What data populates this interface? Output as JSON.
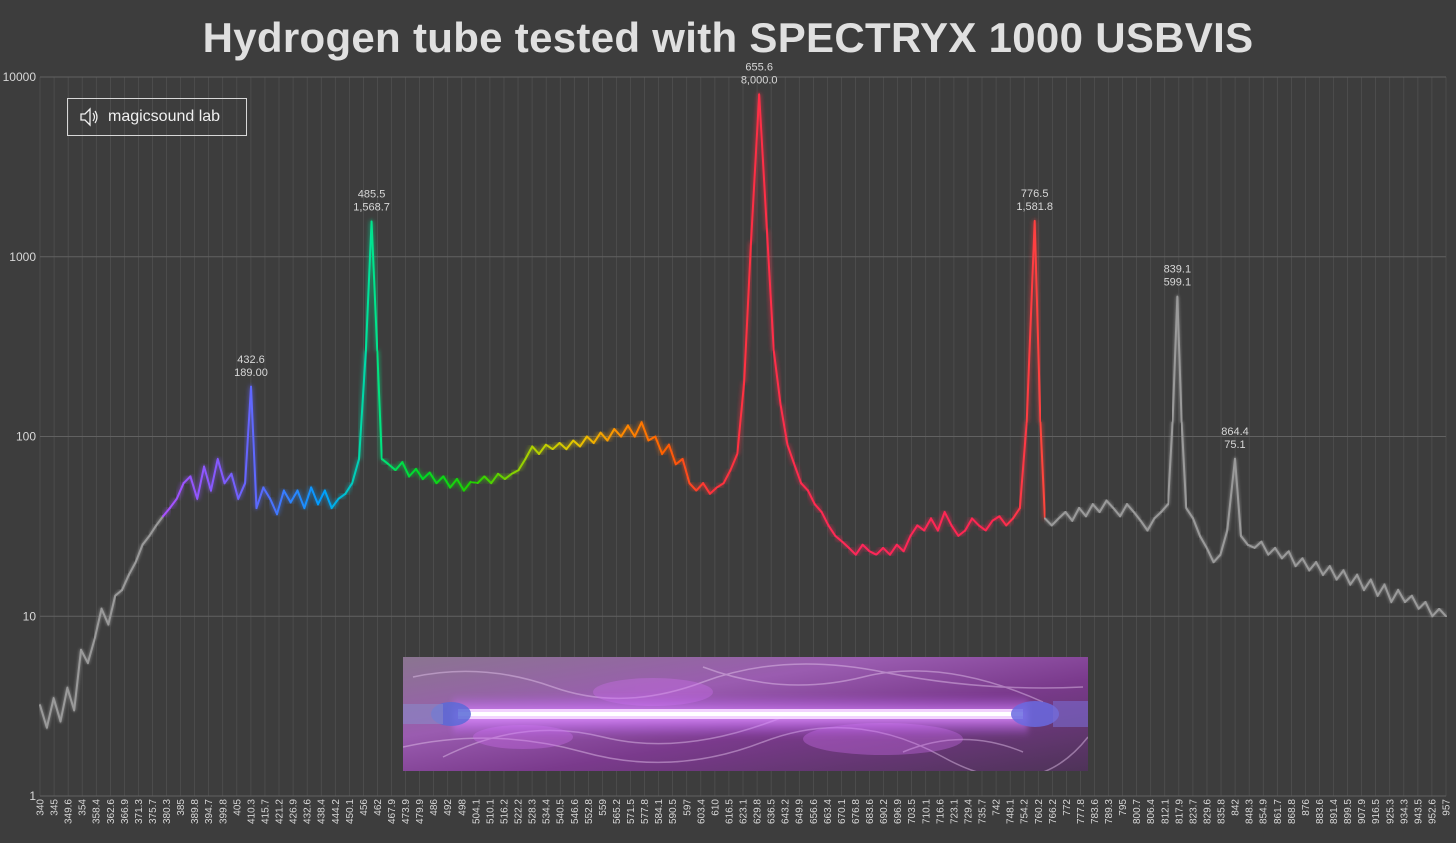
{
  "chart_data": {
    "type": "line",
    "title": "Hydrogen tube tested with SPECTRYX 1000 USBVIS",
    "xlabel": "",
    "ylabel": "",
    "yscale": "log",
    "ylim": [
      1,
      10000
    ],
    "xlim": [
      340,
      957
    ],
    "y_ticks": [
      "1",
      "10",
      "100",
      "1000",
      "10000"
    ],
    "x_ticks": [
      "340",
      "345",
      "349.6",
      "354",
      "358.4",
      "362.6",
      "366.9",
      "371.3",
      "375.7",
      "380.3",
      "385",
      "389.8",
      "394.7",
      "399.8",
      "405",
      "410.3",
      "415.7",
      "421.2",
      "426.9",
      "432.6",
      "438.4",
      "444.2",
      "450.1",
      "456",
      "462",
      "467.9",
      "473.9",
      "479.9",
      "486",
      "492",
      "498",
      "504.1",
      "510.1",
      "516.2",
      "522.2",
      "528.3",
      "534.4",
      "540.5",
      "546.6",
      "552.8",
      "559",
      "565.2",
      "571.5",
      "577.8",
      "584.1",
      "590.5",
      "597",
      "603.4",
      "610",
      "616.5",
      "623.1",
      "629.8",
      "636.5",
      "643.2",
      "649.9",
      "656.6",
      "663.4",
      "670.1",
      "676.8",
      "683.6",
      "690.2",
      "696.9",
      "703.5",
      "710.1",
      "716.6",
      "723.1",
      "729.4",
      "735.7",
      "742",
      "748.1",
      "754.2",
      "760.2",
      "766.2",
      "772",
      "777.8",
      "783.6",
      "789.3",
      "795",
      "800.7",
      "806.4",
      "812.1",
      "817.9",
      "823.7",
      "829.6",
      "835.8",
      "842",
      "848.3",
      "854.9",
      "861.7",
      "868.8",
      "876",
      "883.6",
      "891.4",
      "899.5",
      "907.9",
      "916.5",
      "925.3",
      "934.3",
      "943.5",
      "952.6",
      "957"
    ],
    "grid": true,
    "legend": "none",
    "series": [
      {
        "name": "",
        "points": [
          [
            340,
            3.2
          ],
          [
            343,
            2.4
          ],
          [
            346,
            3.5
          ],
          [
            349,
            2.6
          ],
          [
            352,
            4.0
          ],
          [
            355,
            3.0
          ],
          [
            358,
            6.5
          ],
          [
            361,
            5.5
          ],
          [
            364,
            7.5
          ],
          [
            367,
            11
          ],
          [
            370,
            9
          ],
          [
            373,
            13
          ],
          [
            376,
            14
          ],
          [
            379,
            17
          ],
          [
            382,
            20
          ],
          [
            385,
            25
          ],
          [
            388,
            28
          ],
          [
            391,
            32
          ],
          [
            394,
            36
          ],
          [
            397,
            40
          ],
          [
            400,
            45
          ],
          [
            403,
            55
          ],
          [
            406,
            60
          ],
          [
            409,
            45
          ],
          [
            412,
            68
          ],
          [
            415,
            50
          ],
          [
            418,
            75
          ],
          [
            421,
            55
          ],
          [
            424,
            62
          ],
          [
            427,
            45
          ],
          [
            430,
            55
          ],
          [
            432.6,
            189
          ],
          [
            435,
            40
          ],
          [
            438,
            52
          ],
          [
            441,
            45
          ],
          [
            444,
            37
          ],
          [
            447,
            50
          ],
          [
            450,
            43
          ],
          [
            453,
            50
          ],
          [
            456,
            40
          ],
          [
            459,
            52
          ],
          [
            462,
            42
          ],
          [
            465,
            50
          ],
          [
            468,
            40
          ],
          [
            471,
            45
          ],
          [
            474,
            48
          ],
          [
            477,
            55
          ],
          [
            480,
            75
          ],
          [
            483,
            300
          ],
          [
            485.5,
            1568.7
          ],
          [
            488,
            300
          ],
          [
            490,
            75
          ],
          [
            493,
            70
          ],
          [
            496,
            65
          ],
          [
            499,
            72
          ],
          [
            502,
            60
          ],
          [
            505,
            66
          ],
          [
            508,
            58
          ],
          [
            511,
            63
          ],
          [
            514,
            55
          ],
          [
            517,
            60
          ],
          [
            520,
            52
          ],
          [
            523,
            58
          ],
          [
            526,
            50
          ],
          [
            529,
            56
          ],
          [
            532,
            55
          ],
          [
            535,
            60
          ],
          [
            538,
            55
          ],
          [
            541,
            62
          ],
          [
            544,
            58
          ],
          [
            547,
            62
          ],
          [
            550,
            65
          ],
          [
            553,
            75
          ],
          [
            556,
            88
          ],
          [
            559,
            80
          ],
          [
            562,
            90
          ],
          [
            565,
            85
          ],
          [
            568,
            92
          ],
          [
            571,
            85
          ],
          [
            574,
            95
          ],
          [
            577,
            88
          ],
          [
            580,
            100
          ],
          [
            583,
            92
          ],
          [
            586,
            105
          ],
          [
            589,
            95
          ],
          [
            592,
            110
          ],
          [
            595,
            100
          ],
          [
            598,
            115
          ],
          [
            601,
            100
          ],
          [
            604,
            120
          ],
          [
            607,
            95
          ],
          [
            610,
            100
          ],
          [
            613,
            80
          ],
          [
            616,
            90
          ],
          [
            619,
            70
          ],
          [
            622,
            75
          ],
          [
            625,
            55
          ],
          [
            628,
            50
          ],
          [
            631,
            55
          ],
          [
            634,
            48
          ],
          [
            637,
            52
          ],
          [
            640,
            55
          ],
          [
            643,
            65
          ],
          [
            646,
            80
          ],
          [
            649,
            200
          ],
          [
            652,
            1200
          ],
          [
            655.6,
            8000
          ],
          [
            659,
            1400
          ],
          [
            662,
            300
          ],
          [
            665,
            150
          ],
          [
            668,
            90
          ],
          [
            671,
            70
          ],
          [
            674,
            55
          ],
          [
            677,
            50
          ],
          [
            680,
            42
          ],
          [
            683,
            38
          ],
          [
            686,
            32
          ],
          [
            689,
            28
          ],
          [
            692,
            26
          ],
          [
            695,
            24
          ],
          [
            698,
            22
          ],
          [
            701,
            25
          ],
          [
            704,
            23
          ],
          [
            707,
            22
          ],
          [
            710,
            24
          ],
          [
            713,
            22
          ],
          [
            716,
            25
          ],
          [
            719,
            23
          ],
          [
            722,
            28
          ],
          [
            725,
            32
          ],
          [
            728,
            30
          ],
          [
            731,
            35
          ],
          [
            734,
            30
          ],
          [
            737,
            38
          ],
          [
            740,
            32
          ],
          [
            743,
            28
          ],
          [
            746,
            30
          ],
          [
            749,
            35
          ],
          [
            752,
            32
          ],
          [
            755,
            30
          ],
          [
            758,
            34
          ],
          [
            761,
            36
          ],
          [
            764,
            32
          ],
          [
            767,
            35
          ],
          [
            770,
            40
          ],
          [
            773,
            120
          ],
          [
            776.5,
            1581.8
          ],
          [
            779,
            120
          ],
          [
            781,
            35
          ],
          [
            784,
            32
          ],
          [
            787,
            35
          ],
          [
            790,
            38
          ],
          [
            793,
            34
          ],
          [
            796,
            40
          ],
          [
            799,
            36
          ],
          [
            802,
            42
          ],
          [
            805,
            38
          ],
          [
            808,
            44
          ],
          [
            811,
            40
          ],
          [
            814,
            36
          ],
          [
            817,
            42
          ],
          [
            820,
            38
          ],
          [
            823,
            34
          ],
          [
            826,
            30
          ],
          [
            829,
            35
          ],
          [
            832,
            38
          ],
          [
            835,
            42
          ],
          [
            837,
            120
          ],
          [
            839.1,
            599.1
          ],
          [
            841,
            120
          ],
          [
            843,
            40
          ],
          [
            846,
            35
          ],
          [
            849,
            28
          ],
          [
            852,
            24
          ],
          [
            855,
            20
          ],
          [
            858,
            22
          ],
          [
            861,
            30
          ],
          [
            864.4,
            75.1
          ],
          [
            867,
            28
          ],
          [
            870,
            25
          ],
          [
            873,
            24
          ],
          [
            876,
            26
          ],
          [
            879,
            22
          ],
          [
            882,
            24
          ],
          [
            885,
            21
          ],
          [
            888,
            23
          ],
          [
            891,
            19
          ],
          [
            894,
            21
          ],
          [
            897,
            18
          ],
          [
            900,
            20
          ],
          [
            903,
            17
          ],
          [
            906,
            19
          ],
          [
            909,
            16
          ],
          [
            912,
            18
          ],
          [
            915,
            15
          ],
          [
            918,
            17
          ],
          [
            921,
            14
          ],
          [
            924,
            16
          ],
          [
            927,
            13
          ],
          [
            930,
            15
          ],
          [
            933,
            12
          ],
          [
            936,
            14
          ],
          [
            939,
            12
          ],
          [
            942,
            13
          ],
          [
            945,
            11
          ],
          [
            948,
            12
          ],
          [
            951,
            10
          ],
          [
            954,
            11
          ],
          [
            957,
            10
          ]
        ]
      }
    ],
    "annotations": [
      {
        "x": 432.6,
        "y": 189,
        "wavelength": "432.6",
        "value": "189.00"
      },
      {
        "x": 485.5,
        "y": 1568.7,
        "wavelength": "485.5",
        "value": "1,568.7"
      },
      {
        "x": 655.6,
        "y": 8000,
        "wavelength": "655.6",
        "value": "8,000.0"
      },
      {
        "x": 776.5,
        "y": 1581.8,
        "wavelength": "776.5",
        "value": "1,581.8"
      },
      {
        "x": 839.1,
        "y": 599.1,
        "wavelength": "839.1",
        "value": "599.1"
      },
      {
        "x": 864.4,
        "y": 75.1,
        "wavelength": "864.4",
        "value": "75.1"
      }
    ],
    "colors": {
      "background": "#3d3d3d",
      "grid": "#565656",
      "title": "#e0e0e0",
      "label": "#d8d8d8",
      "uv_ir_line": "#9a9a9a"
    }
  },
  "watermark": {
    "label": "magicsound lab",
    "icon": "speaker-icon"
  },
  "photo": {
    "icon": "hydrogen-tube-photo"
  }
}
